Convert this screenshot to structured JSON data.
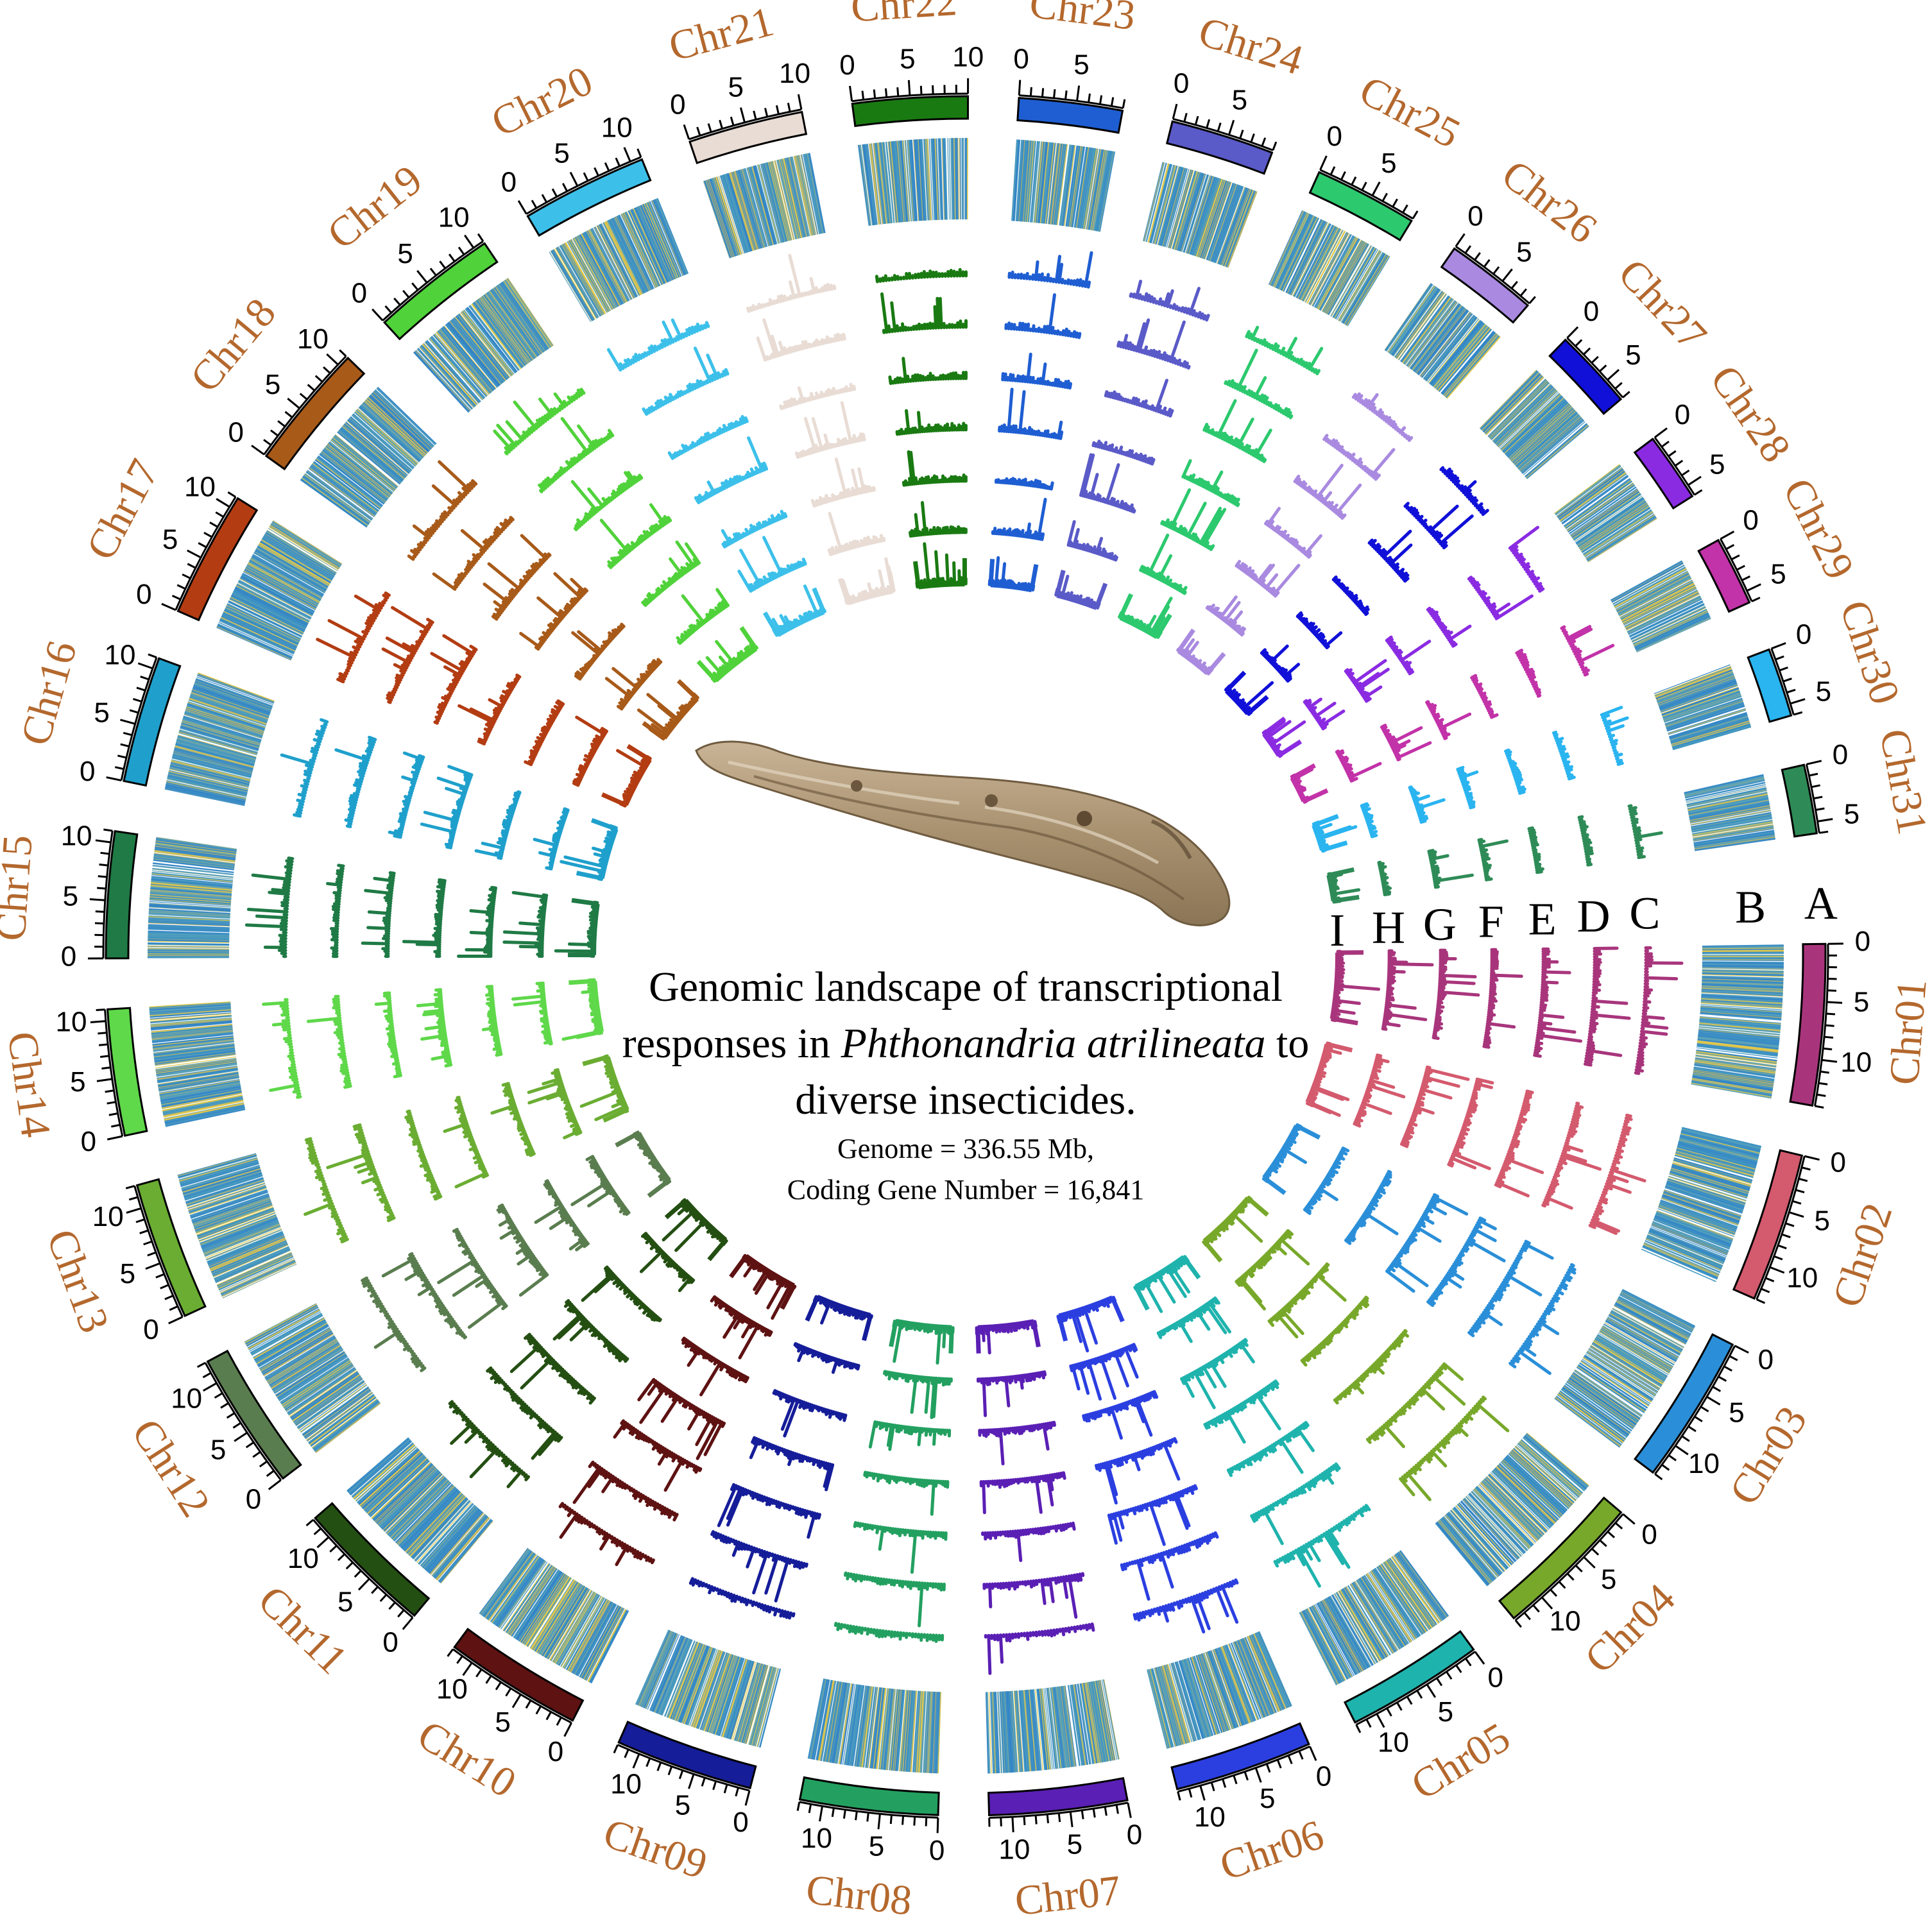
{
  "figure": {
    "title_part1": "Genomic landscape of transcriptional responses in ",
    "title_species": "Phthonandria atrilineata",
    "title_part2": " to diverse insecticides.",
    "genome_size": "Genome = 336.55 Mb,",
    "gene_number": "Coding Gene Number = 16,841",
    "center_image": "caterpillar-photo"
  },
  "tracks": [
    "A",
    "B",
    "C",
    "D",
    "E",
    "F",
    "G",
    "H",
    "I"
  ],
  "chromosomes": [
    {
      "name": "Chr01",
      "length": 14,
      "color": "#a8357c"
    },
    {
      "name": "Chr02",
      "length": 13,
      "color": "#d45a6e"
    },
    {
      "name": "Chr03",
      "length": 13,
      "color": "#2a8fd8"
    },
    {
      "name": "Chr04",
      "length": 13,
      "color": "#78a82a"
    },
    {
      "name": "Chr05",
      "length": 12,
      "color": "#1fb3ad"
    },
    {
      "name": "Chr06",
      "length": 12,
      "color": "#2b3fe0"
    },
    {
      "name": "Chr07",
      "length": 12,
      "color": "#5a1fb4"
    },
    {
      "name": "Chr08",
      "length": 12,
      "color": "#23a060"
    },
    {
      "name": "Chr09",
      "length": 12,
      "color": "#151d99"
    },
    {
      "name": "Chr10",
      "length": 12,
      "color": "#5e1212"
    },
    {
      "name": "Chr11",
      "length": 12,
      "color": "#244f12"
    },
    {
      "name": "Chr12",
      "length": 12,
      "color": "#5a7d4f"
    },
    {
      "name": "Chr13",
      "length": 12,
      "color": "#6aad32"
    },
    {
      "name": "Chr14",
      "length": 11,
      "color": "#5fd84a"
    },
    {
      "name": "Chr15",
      "length": 11,
      "color": "#1f7a45"
    },
    {
      "name": "Chr16",
      "length": 11,
      "color": "#1fa0cc"
    },
    {
      "name": "Chr17",
      "length": 11,
      "color": "#b33c12"
    },
    {
      "name": "Chr18",
      "length": 11,
      "color": "#a85a19"
    },
    {
      "name": "Chr19",
      "length": 11,
      "color": "#50d23a"
    },
    {
      "name": "Chr20",
      "length": 11,
      "color": "#3cc0ea"
    },
    {
      "name": "Chr21",
      "length": 10,
      "color": "#e8dcd5"
    },
    {
      "name": "Chr22",
      "length": 10,
      "color": "#1a7a12"
    },
    {
      "name": "Chr23",
      "length": 9,
      "color": "#1f5ed2"
    },
    {
      "name": "Chr24",
      "length": 9,
      "color": "#5a5ac8"
    },
    {
      "name": "Chr25",
      "length": 9,
      "color": "#2cc96e"
    },
    {
      "name": "Chr26",
      "length": 8,
      "color": "#a98ae0"
    },
    {
      "name": "Chr27",
      "length": 7,
      "color": "#1010d8"
    },
    {
      "name": "Chr28",
      "length": 6,
      "color": "#8a2be2"
    },
    {
      "name": "Chr29",
      "length": 6,
      "color": "#c232a8"
    },
    {
      "name": "Chr30",
      "length": 6,
      "color": "#2ab4f0"
    },
    {
      "name": "Chr31",
      "length": 6,
      "color": "#2e8b57"
    }
  ]
}
